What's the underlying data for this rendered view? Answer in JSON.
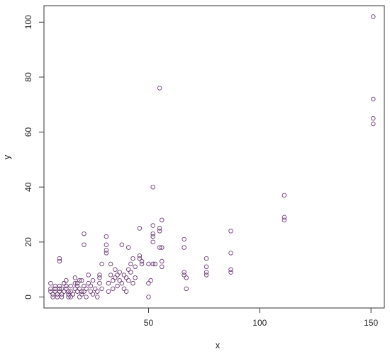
{
  "chart_data": {
    "type": "scatter",
    "title": "",
    "xlabel": "x",
    "ylabel": "y",
    "xlim": [
      3,
      156
    ],
    "ylim": [
      -4,
      106
    ],
    "xticks": [
      50,
      100,
      150
    ],
    "yticks": [
      0,
      20,
      40,
      60,
      80,
      100
    ],
    "grid": false,
    "marker_color": "#6b3a75",
    "points": [
      [
        6,
        5
      ],
      [
        6,
        3
      ],
      [
        6,
        2
      ],
      [
        7,
        1
      ],
      [
        7,
        0
      ],
      [
        8,
        4
      ],
      [
        8,
        3
      ],
      [
        8,
        2
      ],
      [
        9,
        1
      ],
      [
        9,
        0
      ],
      [
        10,
        4
      ],
      [
        10,
        3
      ],
      [
        10,
        2
      ],
      [
        11,
        1
      ],
      [
        11,
        0
      ],
      [
        11,
        3
      ],
      [
        12,
        5
      ],
      [
        12,
        2
      ],
      [
        13,
        4
      ],
      [
        13,
        3
      ],
      [
        14,
        1
      ],
      [
        14,
        0
      ],
      [
        15,
        2
      ],
      [
        15,
        4
      ],
      [
        16,
        1
      ],
      [
        17,
        3
      ],
      [
        17,
        5
      ],
      [
        18,
        2
      ],
      [
        18,
        4
      ],
      [
        19,
        0
      ],
      [
        19,
        3
      ],
      [
        20,
        1
      ],
      [
        20,
        6
      ],
      [
        21,
        4
      ],
      [
        21,
        2
      ],
      [
        10,
        14
      ],
      [
        10,
        13
      ],
      [
        12,
        5
      ],
      [
        13,
        6
      ],
      [
        14,
        2
      ],
      [
        15,
        0
      ],
      [
        16,
        1
      ],
      [
        17,
        7
      ],
      [
        18,
        5
      ],
      [
        19,
        6
      ],
      [
        20,
        2
      ],
      [
        22,
        0
      ],
      [
        22,
        3
      ],
      [
        23,
        5
      ],
      [
        23,
        8
      ],
      [
        24,
        2
      ],
      [
        24,
        4
      ],
      [
        25,
        1
      ],
      [
        25,
        6
      ],
      [
        26,
        3
      ],
      [
        27,
        2
      ],
      [
        27,
        0
      ],
      [
        28,
        8
      ],
      [
        28,
        7
      ],
      [
        28,
        5
      ],
      [
        29,
        3
      ],
      [
        29,
        12
      ],
      [
        21,
        23
      ],
      [
        21,
        19
      ],
      [
        31,
        22
      ],
      [
        31,
        19
      ],
      [
        31,
        17
      ],
      [
        31,
        16
      ],
      [
        32,
        2
      ],
      [
        32,
        5
      ],
      [
        33,
        8
      ],
      [
        33,
        12
      ],
      [
        34,
        3
      ],
      [
        34,
        6
      ],
      [
        35,
        10
      ],
      [
        35,
        7
      ],
      [
        36,
        4
      ],
      [
        36,
        8
      ],
      [
        37,
        6
      ],
      [
        37,
        9
      ],
      [
        38,
        19
      ],
      [
        38,
        5
      ],
      [
        39,
        3
      ],
      [
        39,
        8
      ],
      [
        40,
        7
      ],
      [
        40,
        2
      ],
      [
        41,
        18
      ],
      [
        41,
        10
      ],
      [
        41,
        6
      ],
      [
        42,
        12
      ],
      [
        42,
        9
      ],
      [
        43,
        14
      ],
      [
        43,
        5
      ],
      [
        44,
        11
      ],
      [
        44,
        7
      ],
      [
        46,
        25
      ],
      [
        46,
        15
      ],
      [
        46,
        14
      ],
      [
        47,
        12
      ],
      [
        47,
        13
      ],
      [
        50,
        12
      ],
      [
        50,
        0
      ],
      [
        50,
        5
      ],
      [
        51,
        6
      ],
      [
        52,
        40
      ],
      [
        52,
        26
      ],
      [
        52,
        23
      ],
      [
        52,
        22
      ],
      [
        52,
        20
      ],
      [
        52,
        12
      ],
      [
        53,
        12
      ],
      [
        55,
        76
      ],
      [
        55,
        25
      ],
      [
        55,
        24
      ],
      [
        55,
        18
      ],
      [
        56,
        28
      ],
      [
        56,
        18
      ],
      [
        56,
        13
      ],
      [
        56,
        11
      ],
      [
        66,
        21
      ],
      [
        66,
        18
      ],
      [
        66,
        9
      ],
      [
        66,
        8
      ],
      [
        67,
        7
      ],
      [
        67,
        3
      ],
      [
        76,
        14
      ],
      [
        76,
        11
      ],
      [
        76,
        9
      ],
      [
        76,
        8
      ],
      [
        87,
        24
      ],
      [
        87,
        16
      ],
      [
        87,
        10
      ],
      [
        87,
        9
      ],
      [
        111,
        37
      ],
      [
        111,
        29
      ],
      [
        111,
        28
      ],
      [
        151,
        102
      ],
      [
        151,
        72
      ],
      [
        151,
        65
      ],
      [
        151,
        63
      ]
    ]
  }
}
